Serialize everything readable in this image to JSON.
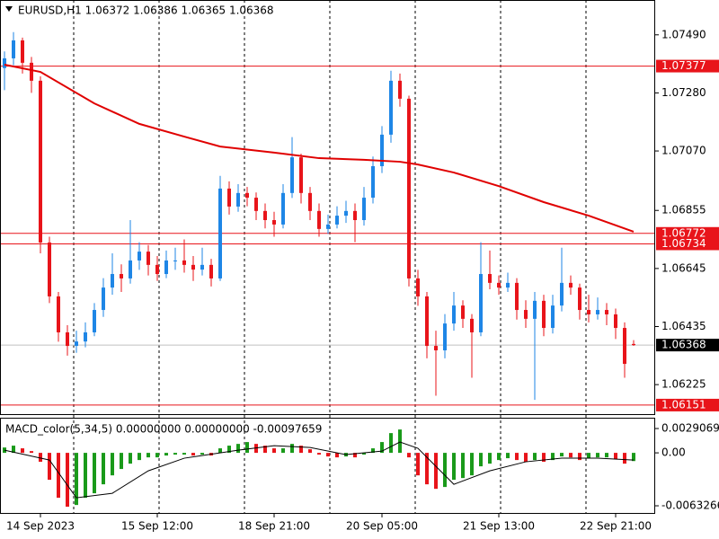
{
  "chart_data": {
    "type": "candlestick",
    "title": "EURUSD,H1  1.06372 1.06386 1.06365 1.06368",
    "categories": [
      null,
      null,
      null,
      null,
      "14 Sep 2023",
      null,
      null,
      null,
      null,
      null,
      null,
      null,
      null,
      null,
      null,
      null,
      null,
      "15 Sep 12:00",
      null,
      null,
      null,
      null,
      null,
      null,
      null,
      null,
      null,
      null,
      null,
      null,
      "18 Sep 21:00",
      null,
      null,
      null,
      null,
      null,
      null,
      null,
      null,
      null,
      null,
      null,
      "20 Sep 05:00",
      null,
      null,
      null,
      null,
      null,
      null,
      null,
      null,
      null,
      null,
      null,
      null,
      "21 Sep 13:00",
      null,
      null,
      null,
      null,
      null,
      null,
      null,
      null,
      null,
      null,
      null,
      null,
      "22 Sep 21:00",
      null,
      null
    ],
    "open": [
      1.0737,
      1.07405,
      1.0747,
      1.07389,
      1.07324,
      1.06739,
      1.06544,
      1.06414,
      1.06365,
      1.06381,
      1.06414,
      1.06495,
      1.06576,
      1.06625,
      1.06609,
      1.06674,
      1.06706,
      1.06658,
      1.06625,
      1.06674,
      1.06674,
      1.06658,
      1.06641,
      1.06658,
      1.06609,
      1.06934,
      1.06869,
      1.06918,
      1.06901,
      1.06853,
      1.0682,
      1.06804,
      1.06918,
      1.07047,
      1.06918,
      1.06853,
      1.06788,
      1.06804,
      1.06836,
      1.06853,
      1.0682,
      1.06901,
      1.07015,
      1.07129,
      1.07324,
      1.07259,
      1.06609,
      1.06544,
      1.06365,
      1.06349,
      1.06446,
      1.06511,
      1.06463,
      1.06414,
      1.06625,
      1.06593,
      1.06576,
      1.06593,
      1.06495,
      1.06463,
      1.06528,
      1.0643,
      1.06511,
      1.06593,
      1.06576,
      1.06495,
      1.06479,
      1.06495,
      1.06479,
      1.0643,
      1.06372
    ],
    "high": [
      1.0743,
      1.075,
      1.0748,
      1.0741,
      1.0734,
      1.0676,
      1.0656,
      1.0644,
      1.0642,
      1.0645,
      1.0652,
      1.0661,
      1.067,
      1.0666,
      1.0682,
      1.0674,
      1.0673,
      1.0669,
      1.0671,
      1.0672,
      1.0675,
      1.0669,
      1.0672,
      1.0668,
      1.0698,
      1.0696,
      1.0695,
      1.0694,
      1.0692,
      1.0688,
      1.0685,
      1.0695,
      1.0712,
      1.0706,
      1.0694,
      1.0688,
      1.0684,
      1.0687,
      1.0689,
      1.0688,
      1.0694,
      1.0705,
      1.0716,
      1.0736,
      1.0735,
      1.0727,
      1.0664,
      1.0656,
      1.0642,
      1.0648,
      1.0656,
      1.0653,
      1.0648,
      1.0674,
      1.0671,
      1.0662,
      1.0663,
      1.0661,
      1.0653,
      1.0656,
      1.0655,
      1.0655,
      1.0672,
      1.0662,
      1.0659,
      1.0655,
      1.0654,
      1.0652,
      1.065,
      1.0645,
      1.06386
    ],
    "low": [
      1.0729,
      1.0738,
      1.0735,
      1.0728,
      1.067,
      1.0652,
      1.0638,
      1.0633,
      1.0634,
      1.0636,
      1.064,
      1.0647,
      1.0655,
      1.0656,
      1.0659,
      1.0664,
      1.0662,
      1.066,
      1.0661,
      1.0664,
      1.0663,
      1.066,
      1.0662,
      1.0658,
      1.066,
      1.0684,
      1.0685,
      1.0687,
      1.0682,
      1.0679,
      1.0676,
      1.0679,
      1.069,
      1.0688,
      1.0682,
      1.0676,
      1.0677,
      1.0679,
      1.0681,
      1.0674,
      1.068,
      1.0688,
      1.0699,
      1.071,
      1.0723,
      1.0658,
      1.0651,
      1.0632,
      1.06185,
      1.0632,
      1.0642,
      1.0643,
      1.0625,
      1.064,
      1.0657,
      1.0655,
      1.0656,
      1.0646,
      1.0643,
      1.0617,
      1.064,
      1.0641,
      1.0649,
      1.0655,
      1.0646,
      1.0645,
      1.0646,
      1.0644,
      1.0639,
      1.0625,
      1.06365
    ],
    "close": [
      1.07405,
      1.0747,
      1.07389,
      1.07324,
      1.06739,
      1.06544,
      1.06414,
      1.06365,
      1.06381,
      1.06414,
      1.06495,
      1.06576,
      1.06625,
      1.06609,
      1.06674,
      1.06706,
      1.06658,
      1.06625,
      1.06674,
      1.06674,
      1.06658,
      1.06641,
      1.06658,
      1.06609,
      1.06934,
      1.06869,
      1.06918,
      1.06901,
      1.06853,
      1.0682,
      1.06804,
      1.06918,
      1.07047,
      1.06918,
      1.06853,
      1.06788,
      1.06804,
      1.06836,
      1.06853,
      1.0682,
      1.06901,
      1.07015,
      1.07129,
      1.07324,
      1.07259,
      1.06609,
      1.06544,
      1.06365,
      1.06349,
      1.06446,
      1.06511,
      1.06463,
      1.06414,
      1.06625,
      1.06593,
      1.06576,
      1.06593,
      1.06495,
      1.06463,
      1.06528,
      1.0643,
      1.06511,
      1.06593,
      1.06576,
      1.06495,
      1.06479,
      1.06495,
      1.06479,
      1.0643,
      1.063,
      1.06368
    ],
    "up_color": "#1e86e6",
    "down_color": "#e8141a",
    "ylim": [
      1.06115,
      1.07616
    ],
    "yticks": [
      {
        "value": 1.0749,
        "label": "1.07490"
      },
      {
        "value": 1.0728,
        "label": "1.07280"
      },
      {
        "value": 1.0707,
        "label": "1.07070"
      },
      1.06855,
      1.06645,
      1.06435,
      1.06225
    ],
    "moving_average": {
      "color": "#e00000",
      "x": [
        0,
        4,
        10,
        15,
        20,
        24,
        30,
        35,
        40,
        44,
        46,
        50,
        55,
        60,
        65,
        70
      ],
      "values": [
        1.07382,
        1.07356,
        1.07242,
        1.07168,
        1.07122,
        1.07086,
        1.07064,
        1.07044,
        1.07038,
        1.07031,
        1.07021,
        1.06992,
        1.06943,
        1.06885,
        1.06836,
        1.06778
      ]
    },
    "levels": [
      1.07377,
      1.06772,
      1.06734,
      1.06151
    ],
    "level_color": "#e8141a",
    "current_price": 1.06368,
    "indicator": {
      "type": "bar",
      "title": "MACD_color(5,34,5) 0.00000000 0.00000000 -0.00097659",
      "values": [
        0.00064,
        0.00086,
        0.00054,
        0.00021,
        -0.00107,
        -0.00322,
        -0.00537,
        -0.00644,
        -0.00623,
        -0.00537,
        -0.00483,
        -0.00376,
        -0.00269,
        -0.00193,
        -0.00129,
        -0.00086,
        -0.00054,
        -0.00054,
        -0.00032,
        -0.00021,
        -0.00021,
        -0.00032,
        -0.00021,
        -0.00032,
        0.00054,
        0.00086,
        0.00107,
        0.00129,
        0.00107,
        0.00086,
        0.00054,
        0.00054,
        0.00107,
        0.00086,
        0.00043,
        -0.00021,
        -0.00043,
        -0.00054,
        -0.00043,
        -0.00054,
        -0.00021,
        0.00054,
        0.00129,
        0.00236,
        0.00279,
        -0.00054,
        -0.00269,
        -0.00376,
        -0.0043,
        -0.00408,
        -0.00322,
        -0.00301,
        -0.00269,
        -0.00161,
        -0.00129,
        -0.00086,
        -0.00064,
        -0.00086,
        -0.00107,
        -0.00086,
        -0.00107,
        -0.00086,
        -0.00043,
        -0.00054,
        -0.00086,
        -0.00064,
        -0.00054,
        -0.00054,
        -0.00075,
        -0.00129,
        -0.00098
      ],
      "up_color": "#1a9a1a",
      "down_color": "#e8141a",
      "signal": {
        "color": "#000000",
        "x": [
          0,
          5,
          8,
          12,
          16,
          20,
          26,
          30,
          34,
          38,
          42,
          44,
          46,
          50,
          54,
          58,
          62,
          66,
          70
        ],
        "values": [
          0.00032,
          -0.00086,
          -0.00537,
          -0.00483,
          -0.00215,
          -0.00064,
          0.00032,
          0.00086,
          0.00064,
          -0.00021,
          0.00021,
          0.00129,
          0.00054,
          -0.00376,
          -0.00215,
          -0.00107,
          -0.00064,
          -0.00064,
          -0.00086
        ]
      },
      "ylim": [
        -0.00729,
        0.00409
      ],
      "yticks": [
        0.0029069,
        {
          "value": 0,
          "label": "0.00"
        },
        -0.0063266
      ]
    }
  }
}
